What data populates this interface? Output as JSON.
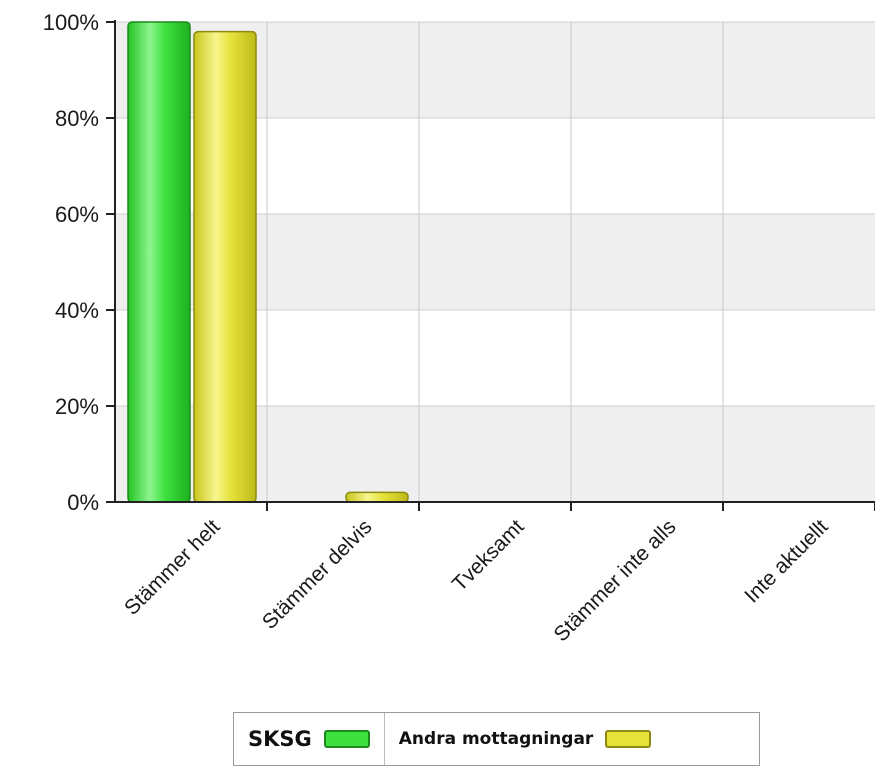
{
  "chart_data": {
    "type": "bar",
    "categories": [
      "Stämmer helt",
      "Stämmer delvis",
      "Tveksamt",
      "Stämmer inte alls",
      "Inte aktuellt"
    ],
    "series": [
      {
        "name": "SKSG",
        "values": [
          100,
          0,
          0,
          0,
          0
        ],
        "color": "#3ee03e",
        "edge": "#1c8a1c"
      },
      {
        "name": "Andra mottagningar",
        "values": [
          98,
          2,
          0,
          0,
          0
        ],
        "color": "#e6e23a",
        "edge": "#8c8a12"
      }
    ],
    "yticks": [
      "0%",
      "20%",
      "40%",
      "60%",
      "80%",
      "100%"
    ],
    "ylim": [
      0,
      100
    ],
    "grid": true,
    "legend_position": "bottom"
  }
}
